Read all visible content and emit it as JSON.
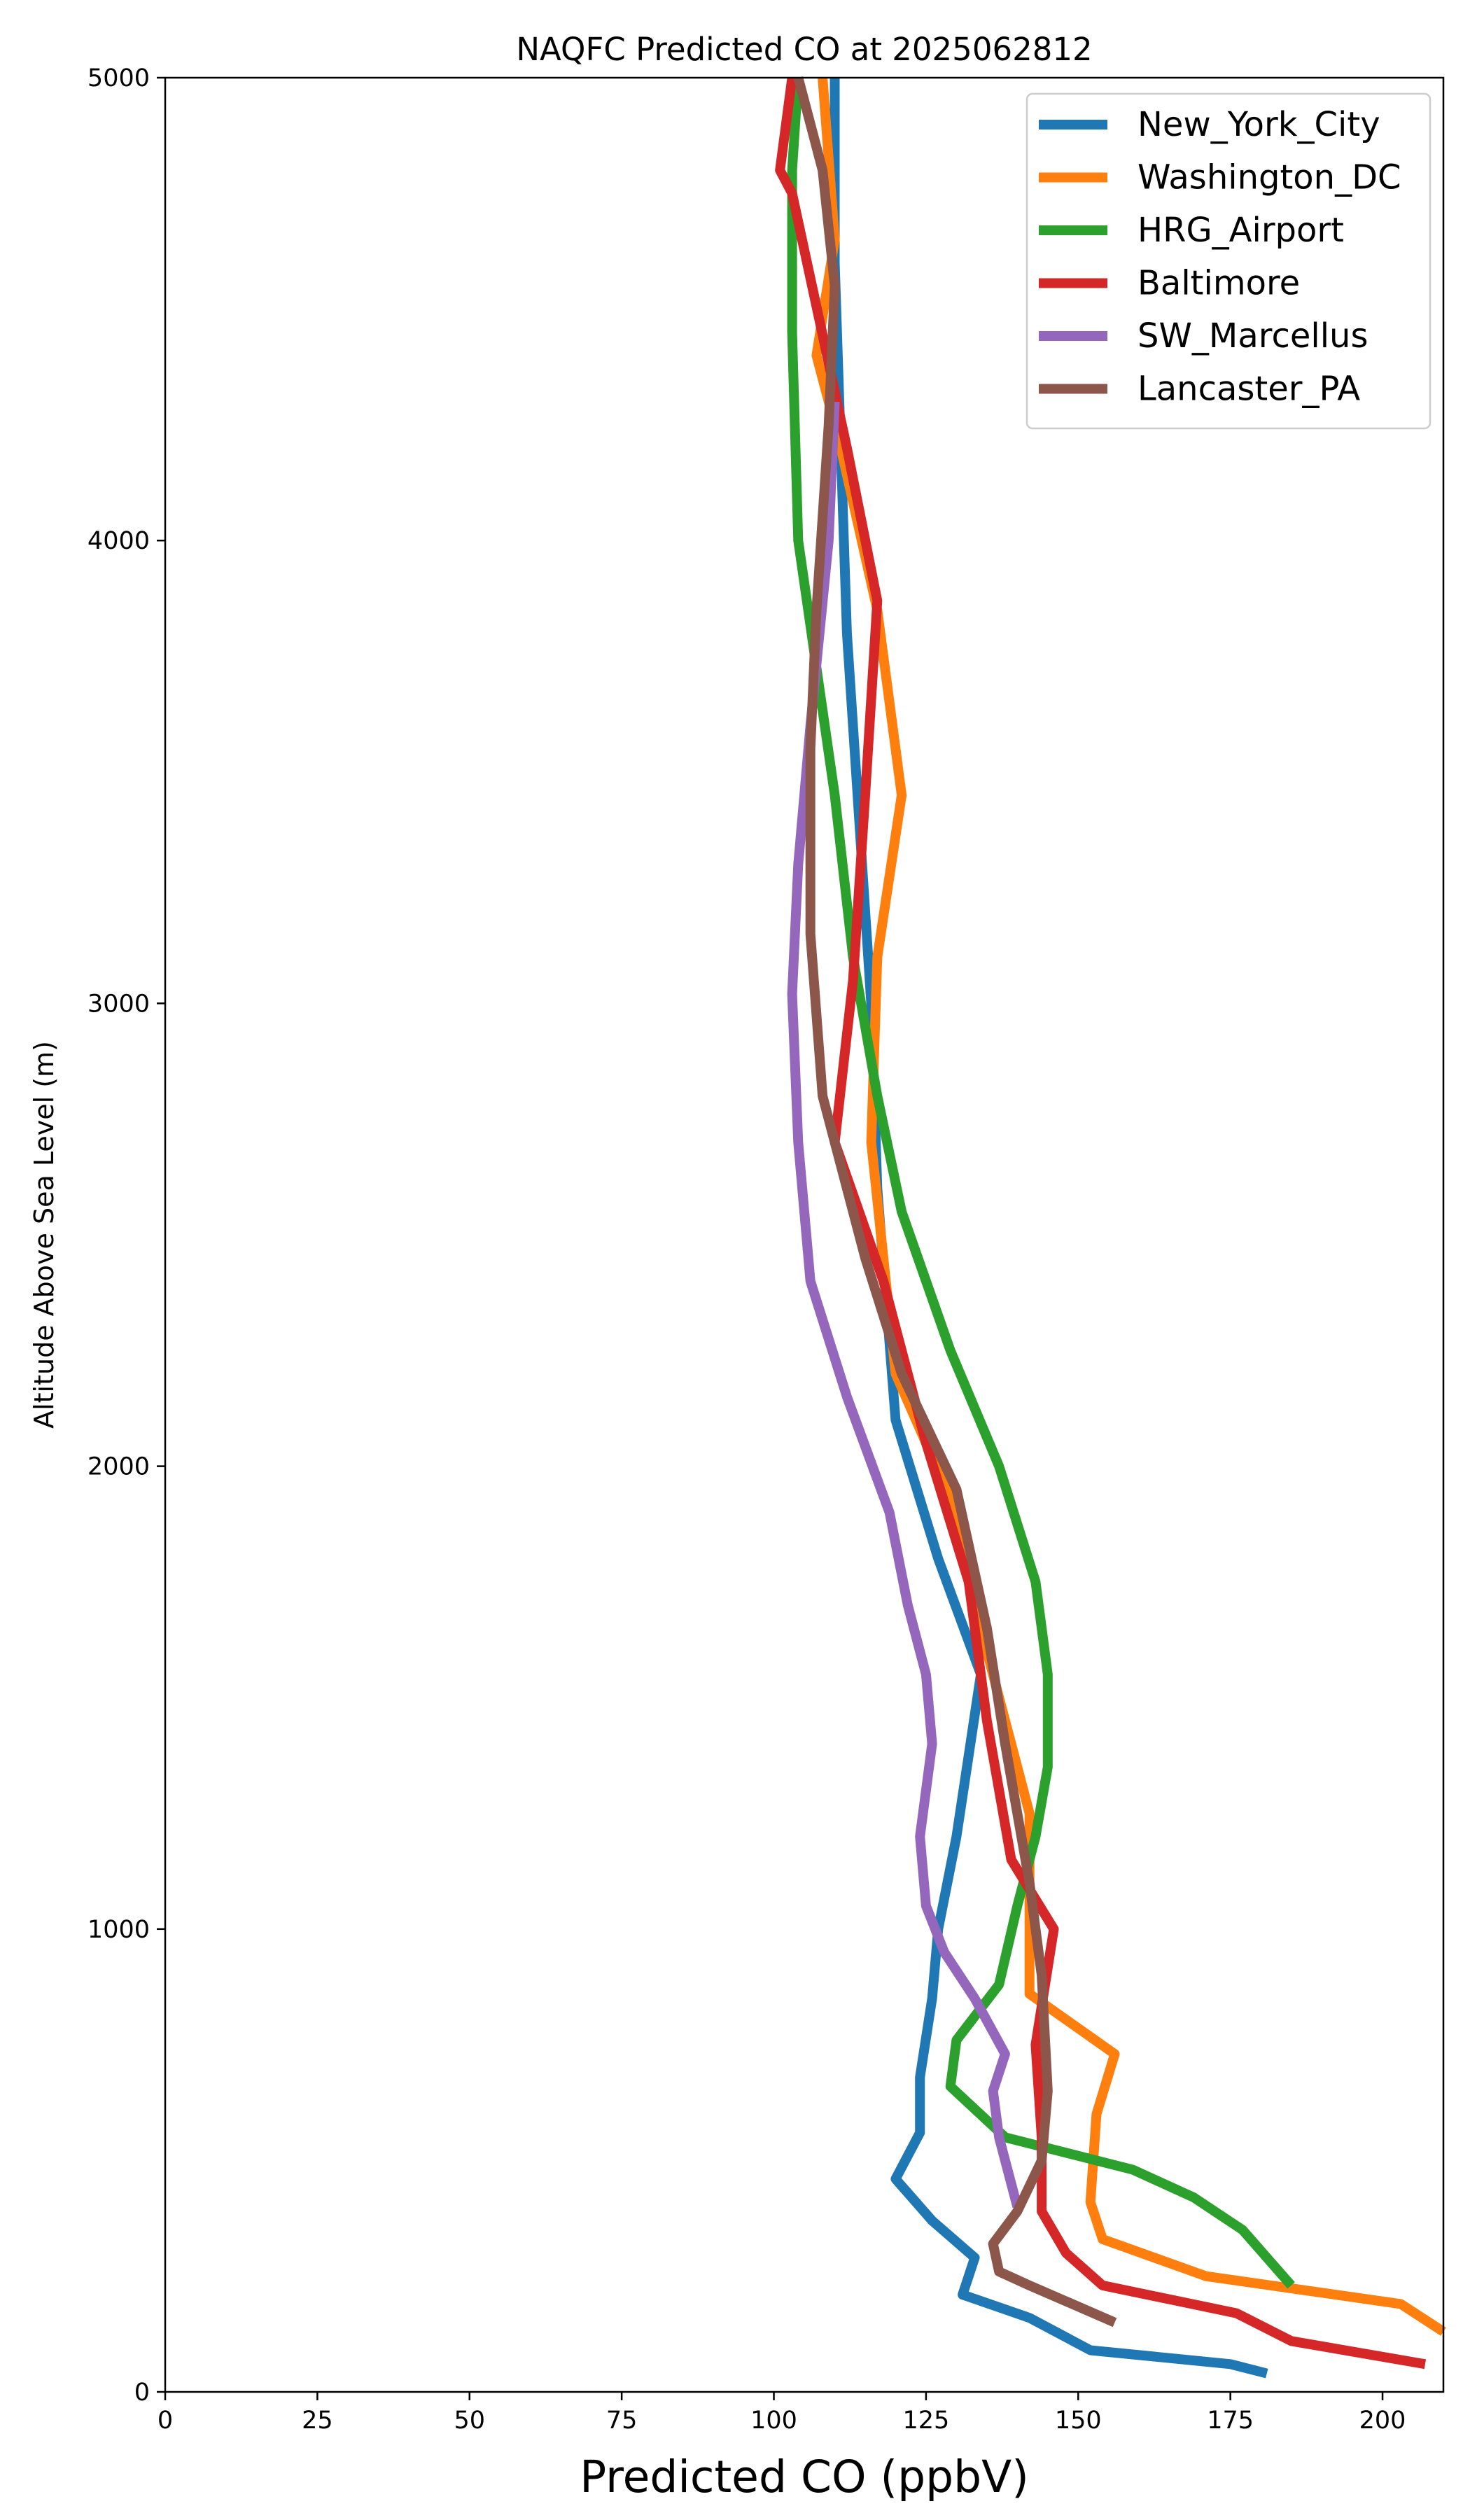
{
  "chart_data": {
    "type": "line",
    "title": "NAQFC Predicted CO at 2025062812",
    "xlabel": "Predicted CO (ppbV)",
    "ylabel": "Altitude Above Sea Level (m)",
    "xlim": [
      0,
      210
    ],
    "ylim": [
      0,
      5000
    ],
    "xticks": [
      0,
      25,
      50,
      75,
      100,
      125,
      150,
      175,
      200
    ],
    "yticks": [
      0,
      1000,
      2000,
      3000,
      4000,
      5000
    ],
    "grid": false,
    "legend_position": "top-right",
    "series": [
      {
        "name": "New_York_City",
        "color": "#1f77b4",
        "x": [
          181,
          175,
          152,
          142,
          131,
          133,
          126,
          120,
          124,
          124,
          126,
          127,
          130,
          134,
          127,
          120,
          117,
          116,
          112,
          111,
          110,
          110
        ],
        "y": [
          40,
          60,
          90,
          160,
          210,
          290,
          370,
          460,
          560,
          680,
          850,
          1000,
          1200,
          1550,
          1800,
          2100,
          2600,
          3000,
          3800,
          4200,
          4600,
          5000
        ]
      },
      {
        "name": "Washington_DC",
        "color": "#ff7f0e",
        "x": [
          210,
          203,
          171,
          154,
          152,
          153,
          156,
          142,
          142,
          135,
          130,
          120,
          116,
          117,
          121,
          117,
          111,
          107,
          110,
          108
        ],
        "y": [
          130,
          190,
          250,
          330,
          410,
          600,
          730,
          860,
          1250,
          1600,
          1900,
          2200,
          2700,
          3100,
          3450,
          3850,
          4200,
          4400,
          4650,
          5000
        ]
      },
      {
        "name": "HRG_Airport",
        "color": "#2ca02c",
        "x": [
          185,
          177,
          169,
          159,
          138,
          129,
          130,
          137,
          140,
          143,
          145,
          145,
          143,
          137,
          129,
          121,
          117,
          113,
          110,
          104,
          103,
          103,
          104
        ],
        "y": [
          230,
          350,
          420,
          480,
          550,
          660,
          760,
          880,
          1050,
          1200,
          1350,
          1550,
          1750,
          2000,
          2250,
          2550,
          2800,
          3100,
          3450,
          4000,
          4450,
          4800,
          5000
        ]
      },
      {
        "name": "Baltimore",
        "color": "#d62728",
        "x": [
          207,
          185,
          176,
          154,
          148,
          144,
          144,
          143,
          146,
          139,
          135,
          132,
          125,
          118,
          110,
          113,
          115,
          117,
          112,
          103,
          101,
          103
        ],
        "y": [
          60,
          110,
          170,
          230,
          300,
          390,
          550,
          750,
          1000,
          1150,
          1450,
          1750,
          2050,
          2400,
          2700,
          3050,
          3450,
          3870,
          4200,
          4750,
          4800,
          5000
        ]
      },
      {
        "name": "SW_Marcellus",
        "color": "#9467bd",
        "x": [
          140,
          137,
          136,
          138,
          133,
          128,
          125,
          124,
          126,
          125,
          122,
          119,
          112,
          106,
          104,
          103,
          104,
          106,
          109,
          110
        ],
        "y": [
          400,
          550,
          650,
          730,
          850,
          950,
          1050,
          1200,
          1400,
          1550,
          1700,
          1900,
          2150,
          2400,
          2700,
          3020,
          3300,
          3600,
          4000,
          4300
        ]
      },
      {
        "name": "Lancaster_PA",
        "color": "#8c564b",
        "x": [
          156,
          142,
          137,
          136,
          140,
          144,
          145,
          144,
          142,
          138,
          135,
          130,
          121,
          115,
          108,
          106,
          106,
          107,
          109,
          110,
          108,
          104
        ],
        "y": [
          150,
          230,
          260,
          320,
          390,
          500,
          650,
          900,
          1100,
          1400,
          1650,
          1950,
          2200,
          2450,
          2800,
          3150,
          3550,
          3850,
          4250,
          4550,
          4800,
          5000
        ]
      }
    ]
  }
}
